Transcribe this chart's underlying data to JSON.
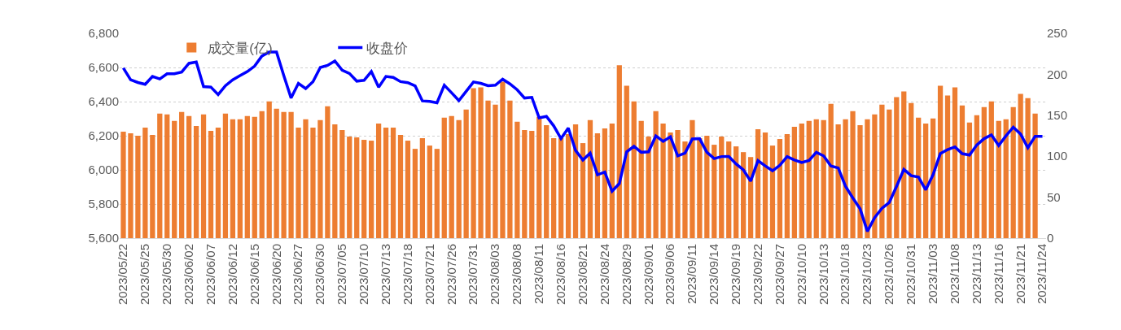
{
  "chart_data": {
    "type": "bar",
    "categories": [
      "2023/05/22",
      null,
      null,
      "2023/05/25",
      null,
      null,
      "2023/05/30",
      null,
      null,
      "2023/06/02",
      null,
      null,
      "2023/06/07",
      null,
      null,
      "2023/06/12",
      null,
      null,
      "2023/06/15",
      null,
      null,
      "2023/06/20",
      null,
      null,
      "2023/06/27",
      null,
      null,
      "2023/06/30",
      null,
      null,
      "2023/07/05",
      null,
      null,
      "2023/07/10",
      null,
      null,
      "2023/07/13",
      null,
      null,
      "2023/07/18",
      null,
      null,
      "2023/07/21",
      null,
      null,
      "2023/07/26",
      null,
      null,
      "2023/07/31",
      null,
      null,
      "2023/08/03",
      null,
      null,
      "2023/08/08",
      null,
      null,
      "2023/08/11",
      null,
      null,
      "2023/08/16",
      null,
      null,
      "2023/08/21",
      null,
      null,
      "2023/08/24",
      null,
      null,
      "2023/08/29",
      null,
      null,
      "2023/09/01",
      null,
      null,
      "2023/09/06",
      null,
      null,
      "2023/09/11",
      null,
      null,
      "2023/09/14",
      null,
      null,
      "2023/09/19",
      null,
      null,
      "2023/09/22",
      null,
      null,
      "2023/09/27",
      null,
      null,
      "2023/10/10",
      null,
      null,
      "2023/10/13",
      null,
      null,
      "2023/10/18",
      null,
      null,
      "2023/10/23",
      null,
      null,
      "2023/10/26",
      null,
      null,
      "2023/10/31",
      null,
      null,
      "2023/11/03",
      null,
      null,
      "2023/11/08",
      null,
      null,
      "2023/11/13",
      null,
      null,
      "2023/11/16",
      null,
      null,
      "2023/11/21",
      null,
      null,
      "2023/11/24"
    ],
    "series": [
      {
        "name": "成交量(亿)",
        "axis": "y2",
        "color": "#ed7d31",
        "values": [
          130,
          128,
          125,
          135,
          126,
          152,
          151,
          143,
          154,
          149,
          137,
          151,
          131,
          135,
          152,
          145,
          145,
          149,
          148,
          155,
          167,
          158,
          154,
          154,
          135,
          145,
          135,
          144,
          161,
          139,
          132,
          124,
          123,
          120,
          119,
          140,
          135,
          135,
          126,
          119,
          109,
          122,
          113,
          109,
          147,
          149,
          144,
          157,
          183,
          184,
          168,
          163,
          191,
          168,
          142,
          132,
          131,
          148,
          138,
          122,
          122,
          127,
          139,
          116,
          144,
          128,
          134,
          140,
          211,
          186,
          167,
          143,
          124,
          155,
          140,
          129,
          132,
          118,
          144,
          122,
          125,
          114,
          124,
          118,
          112,
          105,
          99,
          133,
          129,
          113,
          121,
          127,
          136,
          140,
          143,
          145,
          144,
          164,
          139,
          145,
          155,
          138,
          145,
          151,
          163,
          157,
          172,
          179,
          165,
          147,
          140,
          146,
          186,
          174,
          184,
          162,
          141,
          150,
          160,
          167,
          143,
          145,
          160,
          176,
          171,
          152,
          null
        ]
      },
      {
        "name": "收盘价",
        "type": "line",
        "axis": "y",
        "color": "#0000ff",
        "values": [
          6597,
          6528,
          6512,
          6501,
          6547,
          6533,
          6563,
          6563,
          6573,
          6624,
          6632,
          6488,
          6485,
          6441,
          6493,
          6528,
          6552,
          6576,
          6608,
          6667,
          6691,
          6691,
          6552,
          6421,
          6507,
          6476,
          6517,
          6600,
          6612,
          6638,
          6584,
          6565,
          6520,
          6525,
          6576,
          6484,
          6547,
          6542,
          6517,
          6511,
          6492,
          6404,
          6401,
          6393,
          6496,
          6452,
          6406,
          6460,
          6515,
          6507,
          6493,
          6496,
          6531,
          6504,
          6469,
          6421,
          6425,
          6305,
          6313,
          6258,
          6183,
          6245,
          6114,
          6058,
          6098,
          5971,
          5987,
          5875,
          5920,
          6106,
          6138,
          6103,
          6106,
          6199,
          6167,
          6194,
          6082,
          6098,
          6181,
          6183,
          6103,
          6066,
          6078,
          6079,
          6035,
          6000,
          5934,
          6054,
          6023,
          5995,
          6027,
          6078,
          6058,
          6043,
          6055,
          6103,
          6082,
          6023,
          6011,
          5904,
          5836,
          5772,
          5640,
          5721,
          5775,
          5809,
          5904,
          6003,
          5966,
          5958,
          5883,
          5971,
          6095,
          6119,
          6135,
          6095,
          6087,
          6146,
          6183,
          6205,
          6143,
          6199,
          6250,
          6210,
          6130,
          6197,
          6197
        ]
      }
    ],
    "ylim": [
      5600,
      6800
    ],
    "yticks": [
      {
        "value": 5600,
        "label": "5,600"
      },
      {
        "value": 5800,
        "label": "5,800"
      },
      {
        "value": 6000,
        "label": "6,000"
      },
      {
        "value": 6200,
        "label": "6,200"
      },
      {
        "value": 6400,
        "label": "6,400"
      },
      {
        "value": 6600,
        "label": "6,600"
      },
      {
        "value": 6800,
        "label": "6,800"
      }
    ],
    "y2lim": [
      0,
      250
    ],
    "y2ticks": [
      0,
      50,
      100,
      150,
      200,
      250
    ],
    "grid": "y",
    "legend": "top left",
    "marker": "none",
    "line_style": "solid"
  }
}
